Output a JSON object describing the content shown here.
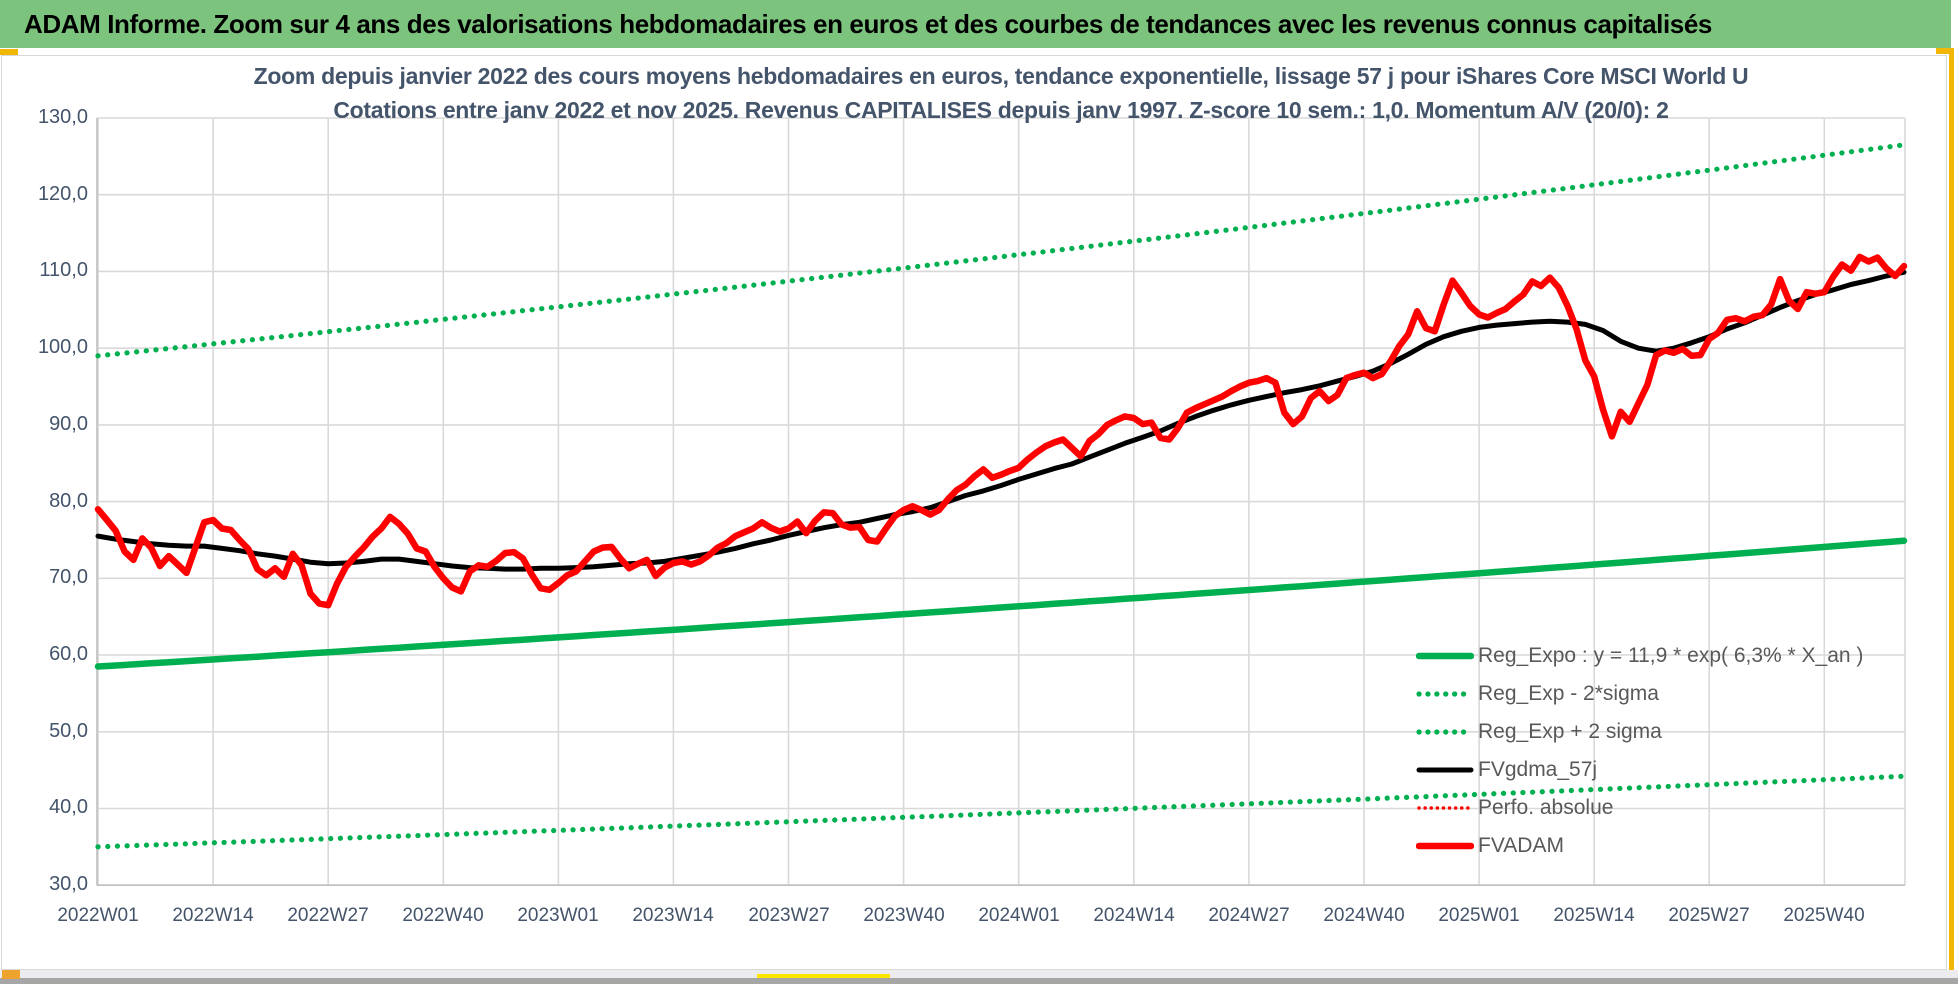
{
  "header": {
    "title": "ADAM Informe. Zoom sur 4 ans des valorisations hebdomadaires en euros et des courbes de tendances avec les revenus connus capitalisés",
    "bg_color": "#7cc47e",
    "text_color": "#000000"
  },
  "chart": {
    "title_line1": "Zoom depuis janvier 2022 des cours moyens hebdomadaires en euros, tendance exponentielle, lissage 57 j pour iShares Core MSCI World U",
    "title_line2": "Cotations entre janv 2022 et nov 2025. Revenus CAPITALISES depuis janv 1997. Z-score 10 sem.: 1,0. Momentum A/V (20/0): 2",
    "title_color": "#44546a",
    "axis_label_color": "#44546a",
    "legend_text_color": "#595959",
    "gridline_color": "#d9d9d9",
    "selection_border_color": "#f2b705",
    "accent_orange": "#efa32f",
    "accent_yellow": "#ffe500"
  },
  "chart_data": {
    "type": "line",
    "title": "Zoom depuis janvier 2022 des cours moyens hebdomadaires en euros, tendance exponentielle, lissage 57 j pour iShares Core MSCI World U — Cotations entre janv 2022 et nov 2025",
    "grid": true,
    "legend_position": "inside-lower-right",
    "x_axis": {
      "unit": "semaine ISO",
      "range_weeks": [
        0,
        204
      ],
      "tick_weeks": [
        0,
        13,
        26,
        39,
        52,
        65,
        78,
        91,
        104,
        117,
        130,
        143,
        156,
        169,
        182,
        195
      ],
      "tick_labels": [
        "2022W01",
        "2022W14",
        "2022W27",
        "2022W40",
        "2023W01",
        "2023W14",
        "2023W27",
        "2023W40",
        "2024W01",
        "2024W14",
        "2024W27",
        "2024W40",
        "2025W01",
        "2025W14",
        "2025W27",
        "2025W40"
      ]
    },
    "y_axis": {
      "range": [
        30,
        130
      ],
      "tick_values": [
        130,
        120,
        110,
        100,
        90,
        80,
        70,
        60,
        50,
        40,
        30
      ],
      "tick_labels": [
        "130,0",
        "120,0",
        "110,0",
        "100,0",
        "90,0",
        "80,0",
        "70,0",
        "60,0",
        "50,0",
        "40,0",
        "30,0"
      ]
    },
    "series": [
      {
        "name": "Reg_Expo : y = 11,9 * exp( 6,3% *  X_an )",
        "type": "exponential-trend",
        "color": "#00b050",
        "style": "solid",
        "width": 6.5,
        "start_value": 58.5,
        "end_value": 74.9
      },
      {
        "name": "Reg_Exp - 2*sigma",
        "type": "exponential-trend",
        "color": "#00b050",
        "style": "dotted",
        "width": 5.2,
        "start_value": 35.0,
        "end_value": 44.2
      },
      {
        "name": "Reg_Exp + 2 sigma",
        "type": "exponential-trend",
        "color": "#00b050",
        "style": "dotted",
        "width": 5.2,
        "start_value": 99.0,
        "end_value": 126.5
      },
      {
        "name": "FVgdma_57j",
        "type": "smoothed",
        "color": "#000000",
        "style": "solid",
        "width": 5,
        "points": [
          [
            0,
            75.5
          ],
          [
            2,
            75.1
          ],
          [
            4,
            74.8
          ],
          [
            6,
            74.5
          ],
          [
            8,
            74.3
          ],
          [
            10,
            74.2
          ],
          [
            12,
            74.2
          ],
          [
            14,
            73.9
          ],
          [
            16,
            73.6
          ],
          [
            18,
            73.2
          ],
          [
            20,
            72.9
          ],
          [
            22,
            72.5
          ],
          [
            24,
            72.1
          ],
          [
            26,
            71.9
          ],
          [
            28,
            72.0
          ],
          [
            30,
            72.2
          ],
          [
            32,
            72.5
          ],
          [
            34,
            72.5
          ],
          [
            36,
            72.2
          ],
          [
            38,
            71.9
          ],
          [
            40,
            71.6
          ],
          [
            42,
            71.4
          ],
          [
            44,
            71.3
          ],
          [
            46,
            71.2
          ],
          [
            48,
            71.2
          ],
          [
            50,
            71.3
          ],
          [
            52,
            71.3
          ],
          [
            54,
            71.4
          ],
          [
            56,
            71.5
          ],
          [
            58,
            71.7
          ],
          [
            60,
            71.9
          ],
          [
            62,
            72.0
          ],
          [
            64,
            72.2
          ],
          [
            66,
            72.6
          ],
          [
            68,
            73.0
          ],
          [
            70,
            73.4
          ],
          [
            72,
            73.9
          ],
          [
            74,
            74.5
          ],
          [
            76,
            75.0
          ],
          [
            78,
            75.6
          ],
          [
            80,
            76.1
          ],
          [
            82,
            76.6
          ],
          [
            84,
            77.0
          ],
          [
            86,
            77.3
          ],
          [
            88,
            77.8
          ],
          [
            90,
            78.3
          ],
          [
            92,
            78.7
          ],
          [
            94,
            79.2
          ],
          [
            96,
            80.0
          ],
          [
            98,
            80.8
          ],
          [
            100,
            81.4
          ],
          [
            102,
            82.1
          ],
          [
            104,
            82.9
          ],
          [
            106,
            83.6
          ],
          [
            108,
            84.3
          ],
          [
            110,
            84.9
          ],
          [
            112,
            85.8
          ],
          [
            114,
            86.7
          ],
          [
            116,
            87.6
          ],
          [
            118,
            88.4
          ],
          [
            120,
            89.2
          ],
          [
            122,
            90.2
          ],
          [
            124,
            91.1
          ],
          [
            126,
            91.9
          ],
          [
            128,
            92.6
          ],
          [
            130,
            93.2
          ],
          [
            132,
            93.7
          ],
          [
            134,
            94.2
          ],
          [
            136,
            94.6
          ],
          [
            138,
            95.1
          ],
          [
            140,
            95.7
          ],
          [
            142,
            96.3
          ],
          [
            144,
            97.0
          ],
          [
            146,
            98.0
          ],
          [
            148,
            99.2
          ],
          [
            150,
            100.5
          ],
          [
            152,
            101.5
          ],
          [
            154,
            102.2
          ],
          [
            156,
            102.7
          ],
          [
            158,
            103.0
          ],
          [
            160,
            103.2
          ],
          [
            162,
            103.4
          ],
          [
            164,
            103.5
          ],
          [
            166,
            103.4
          ],
          [
            168,
            103.1
          ],
          [
            170,
            102.3
          ],
          [
            172,
            100.9
          ],
          [
            174,
            100.0
          ],
          [
            176,
            99.6
          ],
          [
            178,
            100.0
          ],
          [
            180,
            100.7
          ],
          [
            182,
            101.5
          ],
          [
            184,
            102.5
          ],
          [
            186,
            103.3
          ],
          [
            188,
            104.3
          ],
          [
            190,
            105.3
          ],
          [
            192,
            106.2
          ],
          [
            194,
            107.0
          ],
          [
            196,
            107.6
          ],
          [
            198,
            108.3
          ],
          [
            200,
            108.8
          ],
          [
            202,
            109.4
          ],
          [
            204,
            109.9
          ]
        ]
      },
      {
        "name": "Perfo. absolue",
        "type": "weekly",
        "color": "#ff0000",
        "style": "dotted",
        "width": 3.5,
        "values_same_as": "FVADAM",
        "note": "coincides with FVADAM and is hidden behind it on the plot"
      },
      {
        "name": "FVADAM",
        "type": "weekly",
        "color": "#ff0000",
        "style": "solid",
        "width": 6.5,
        "week_start": 0,
        "values": [
          79.0,
          77.6,
          76.2,
          73.5,
          72.4,
          75.2,
          74.0,
          71.6,
          72.9,
          71.8,
          70.7,
          74.0,
          77.3,
          77.6,
          76.5,
          76.3,
          75.0,
          73.8,
          71.2,
          70.4,
          71.3,
          70.2,
          73.2,
          71.7,
          68.0,
          66.7,
          66.5,
          69.3,
          71.5,
          72.8,
          74.0,
          75.4,
          76.5,
          78.0,
          77.1,
          75.8,
          73.9,
          73.5,
          71.5,
          70.0,
          68.8,
          68.3,
          70.9,
          71.7,
          71.5,
          72.3,
          73.3,
          73.4,
          72.6,
          70.5,
          68.7,
          68.5,
          69.4,
          70.4,
          70.9,
          72.2,
          73.5,
          74.0,
          74.1,
          72.6,
          71.3,
          71.9,
          72.4,
          70.3,
          71.4,
          72.0,
          72.2,
          71.8,
          72.2,
          73.0,
          74.0,
          74.6,
          75.5,
          76.0,
          76.5,
          77.3,
          76.6,
          76.1,
          76.5,
          77.4,
          75.9,
          77.5,
          78.6,
          78.5,
          77.0,
          76.6,
          76.7,
          75.0,
          74.8,
          76.5,
          78.1,
          78.9,
          79.4,
          78.9,
          78.3,
          78.9,
          80.3,
          81.5,
          82.2,
          83.3,
          84.2,
          83.1,
          83.5,
          84.0,
          84.4,
          85.5,
          86.4,
          87.2,
          87.7,
          88.1,
          87.0,
          85.9,
          87.9,
          88.8,
          90.0,
          90.6,
          91.1,
          90.9,
          90.1,
          90.3,
          88.3,
          88.1,
          89.6,
          91.6,
          92.2,
          92.7,
          93.2,
          93.7,
          94.4,
          95.0,
          95.5,
          95.7,
          96.1,
          95.5,
          91.6,
          90.1,
          91.1,
          93.5,
          94.4,
          93.1,
          93.9,
          96.1,
          96.5,
          96.8,
          96.1,
          96.6,
          98.3,
          100.3,
          101.8,
          104.8,
          102.6,
          102.2,
          105.7,
          108.8,
          107.2,
          105.5,
          104.4,
          104.0,
          104.6,
          105.1,
          106.1,
          107.0,
          108.7,
          108.1,
          109.2,
          107.9,
          105.5,
          102.5,
          98.4,
          96.3,
          92.0,
          88.5,
          91.7,
          90.4,
          92.8,
          95.2,
          99.1,
          99.7,
          99.4,
          99.9,
          99.0,
          99.1,
          101.2,
          102.0,
          103.7,
          103.9,
          103.5,
          104.1,
          104.3,
          105.7,
          109.0,
          106.2,
          105.1,
          107.3,
          107.1,
          107.3,
          109.3,
          110.9,
          110.1,
          111.9,
          111.3,
          111.8,
          110.4,
          109.4,
          110.7
        ]
      }
    ]
  }
}
